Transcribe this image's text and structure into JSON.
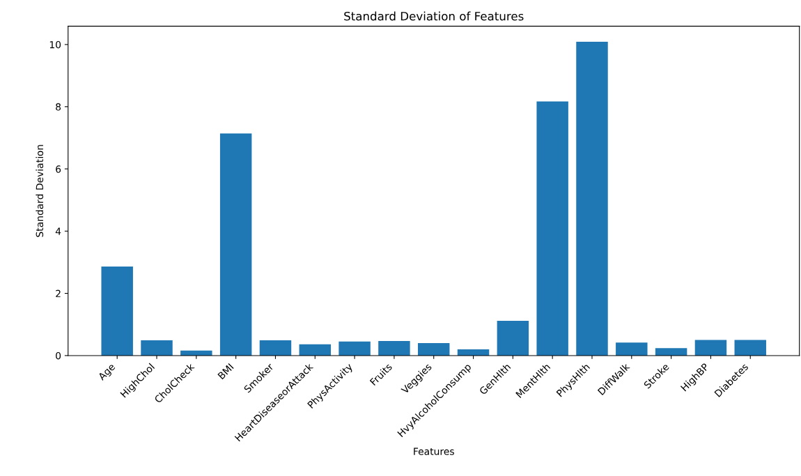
{
  "chart_data": {
    "type": "bar",
    "title": "Standard Deviation of Features",
    "xlabel": "Features",
    "ylabel": "Standard Deviation",
    "categories": [
      "Age",
      "HighChol",
      "CholCheck",
      "BMI",
      "Smoker",
      "HeartDiseaseorAttack",
      "PhysActivity",
      "Fruits",
      "Veggies",
      "HvyAlcoholConsump",
      "GenHlth",
      "MentHlth",
      "PhysHlth",
      "DiffWalk",
      "Stroke",
      "HighBP",
      "Diabetes"
    ],
    "values": [
      2.86,
      0.49,
      0.16,
      7.14,
      0.49,
      0.36,
      0.45,
      0.47,
      0.4,
      0.2,
      1.12,
      8.17,
      10.09,
      0.42,
      0.24,
      0.5,
      0.5
    ],
    "color": "#1f77b4",
    "ylim": [
      0,
      10.59
    ],
    "yticks": [
      0,
      2,
      4,
      6,
      8,
      10
    ],
    "grid": false
  }
}
